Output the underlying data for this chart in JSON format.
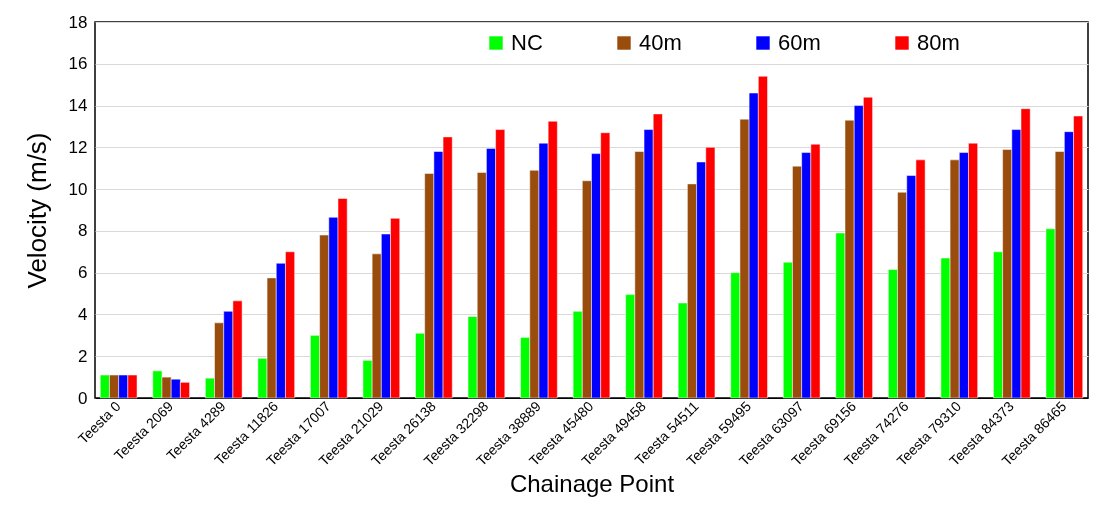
{
  "chart_data": {
    "type": "bar",
    "xlabel": "Chainage Point",
    "ylabel": "Velocity (m/s)",
    "categories": [
      "Teesta 0",
      "Teesta 2069",
      "Teesta 4289",
      "Teesta 11826",
      "Teesta 17007",
      "Teesta 21029",
      "Teesta 26138",
      "Teesta 32298",
      "Teesta 38889",
      "Teesta 45480",
      "Teesta 49458",
      "Teesta 54511",
      "Teesta 59495",
      "Teesta 63097",
      "Teesta 69156",
      "Teesta 74276",
      "Teesta 79310",
      "Teesta 84373",
      "Teesta 86465"
    ],
    "series": [
      {
        "name": "NC",
        "color": "#00ff00",
        "values": [
          1.1,
          1.3,
          0.95,
          1.9,
          3.0,
          1.8,
          3.1,
          3.9,
          2.9,
          4.15,
          4.95,
          4.55,
          6.0,
          6.5,
          7.9,
          6.15,
          6.7,
          7.0,
          8.1
        ]
      },
      {
        "name": "40m",
        "color": "#994c0c",
        "values": [
          1.1,
          1.0,
          3.6,
          5.75,
          7.8,
          6.9,
          10.75,
          10.8,
          10.9,
          10.4,
          11.8,
          10.25,
          13.35,
          11.1,
          13.3,
          9.85,
          11.4,
          11.9,
          11.8
        ]
      },
      {
        "name": "60m",
        "color": "#0000ff",
        "values": [
          1.1,
          0.9,
          4.15,
          6.45,
          8.65,
          7.85,
          11.8,
          11.95,
          12.2,
          11.7,
          12.85,
          11.3,
          14.6,
          11.75,
          14.0,
          10.65,
          11.75,
          12.85,
          12.75
        ]
      },
      {
        "name": "80m",
        "color": "#ff0000",
        "values": [
          1.1,
          0.75,
          4.65,
          7.0,
          9.55,
          8.6,
          12.5,
          12.85,
          13.25,
          12.7,
          13.6,
          12.0,
          15.4,
          12.15,
          14.4,
          11.4,
          12.2,
          13.85,
          13.5
        ]
      }
    ],
    "ylim": [
      0,
      18
    ],
    "yticks": [
      0,
      2,
      4,
      6,
      8,
      10,
      12,
      14,
      16,
      18
    ],
    "grid": "y",
    "legend": "top"
  }
}
